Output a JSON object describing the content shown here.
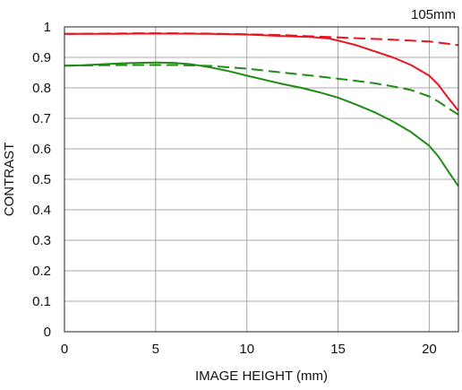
{
  "chart_data": {
    "type": "line",
    "title": "105mm",
    "xlabel": "IMAGE HEIGHT (mm)",
    "ylabel": "CONTRAST",
    "xlim": [
      0,
      21.6
    ],
    "ylim": [
      0,
      1
    ],
    "xticks": [
      0,
      5,
      10,
      15,
      20
    ],
    "yticks": [
      0,
      0.1,
      0.2,
      0.3,
      0.4,
      0.5,
      0.6,
      0.7,
      0.8,
      0.9,
      1
    ],
    "ytick_labels": [
      "0",
      "0.1",
      "0.2",
      "0.3",
      "0.4",
      "0.5",
      "0.6",
      "0.7",
      "0.8",
      "0.9",
      "1"
    ],
    "grid": true,
    "legend": false,
    "series": [
      {
        "color": "#e8141e",
        "dash": "solid",
        "x": [
          0,
          2,
          4,
          6,
          8,
          10,
          12,
          13.5,
          14.5,
          15,
          16,
          17,
          18,
          19,
          20,
          20.5,
          21,
          21.6
        ],
        "y": [
          0.977,
          0.977,
          0.978,
          0.978,
          0.977,
          0.975,
          0.97,
          0.967,
          0.962,
          0.955,
          0.94,
          0.92,
          0.9,
          0.875,
          0.84,
          0.81,
          0.77,
          0.725
        ]
      },
      {
        "color": "#e8141e",
        "dash": "dashed",
        "x": [
          0,
          2,
          4,
          6,
          8,
          10,
          12,
          14,
          16,
          18,
          19,
          20,
          21,
          21.6
        ],
        "y": [
          0.977,
          0.978,
          0.979,
          0.979,
          0.978,
          0.976,
          0.973,
          0.968,
          0.963,
          0.958,
          0.955,
          0.952,
          0.945,
          0.94
        ]
      },
      {
        "color": "#1e8c14",
        "dash": "solid",
        "x": [
          0,
          1,
          2,
          3,
          4,
          5,
          6,
          7,
          8,
          9,
          10,
          11,
          12,
          13,
          14,
          15,
          16,
          17,
          18,
          19,
          20,
          20.5,
          21,
          21.6
        ],
        "y": [
          0.873,
          0.874,
          0.877,
          0.88,
          0.882,
          0.883,
          0.882,
          0.877,
          0.867,
          0.855,
          0.84,
          0.826,
          0.812,
          0.8,
          0.785,
          0.768,
          0.745,
          0.72,
          0.69,
          0.655,
          0.61,
          0.575,
          0.53,
          0.477
        ]
      },
      {
        "color": "#1e8c14",
        "dash": "dashed",
        "x": [
          0,
          2,
          4,
          6,
          8,
          10,
          12,
          14,
          16,
          17,
          18,
          19,
          20,
          20.5,
          21,
          21.6
        ],
        "y": [
          0.873,
          0.874,
          0.875,
          0.875,
          0.872,
          0.863,
          0.85,
          0.837,
          0.823,
          0.815,
          0.805,
          0.793,
          0.772,
          0.755,
          0.735,
          0.712
        ]
      }
    ]
  }
}
